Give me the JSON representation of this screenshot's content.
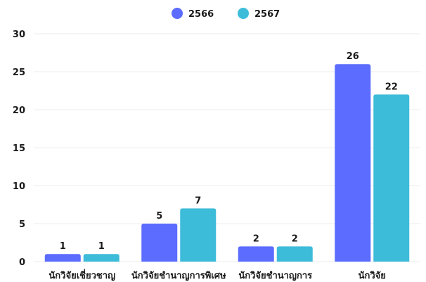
{
  "chart_data": {
    "type": "bar",
    "categories": [
      "นักวิจัยเชี่ยวชาญ",
      "นักวิจัยชำนาญการพิเศษ",
      "นักวิจัยชำนาญการ",
      "นักวิจัย"
    ],
    "series": [
      {
        "name": "2566",
        "values": [
          1,
          5,
          2,
          26
        ],
        "color": "#5b6cff"
      },
      {
        "name": "2567",
        "values": [
          1,
          7,
          2,
          22
        ],
        "color": "#3dbcd9"
      }
    ],
    "yticks": [
      0,
      5,
      10,
      15,
      20,
      25,
      30
    ],
    "ylim": [
      0,
      30
    ],
    "grid": true,
    "legend": "top-center"
  }
}
